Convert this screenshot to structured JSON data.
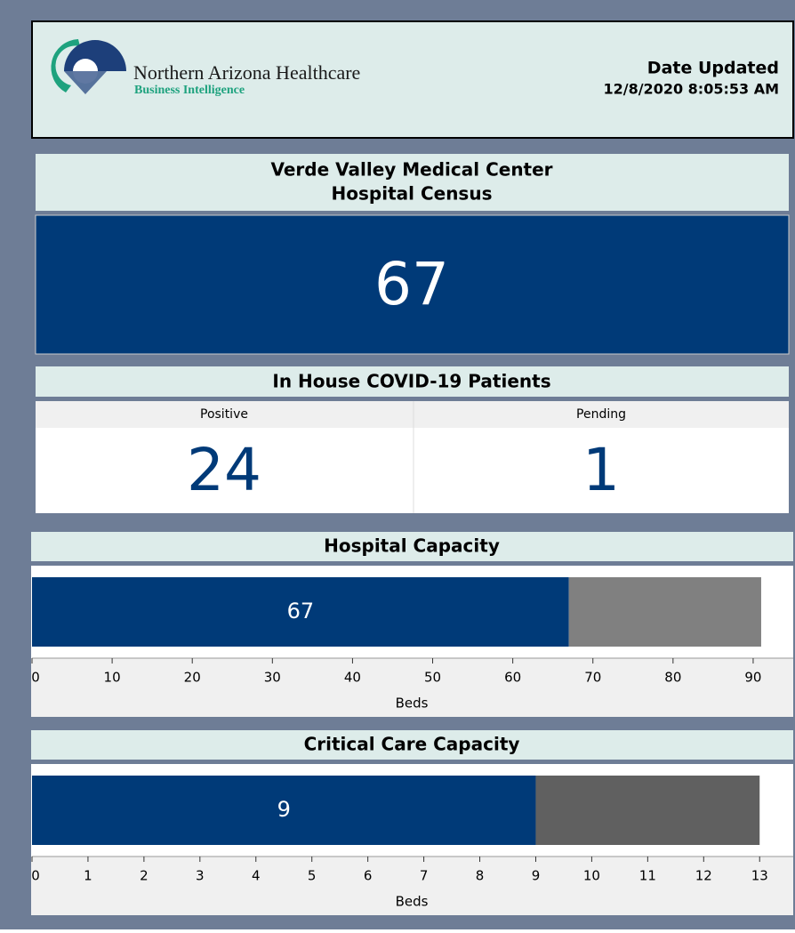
{
  "header": {
    "org": "Northern Arizona Healthcare",
    "unit": "Business Intelligence",
    "date_label": "Date Updated",
    "date": "12/8/2020 8:05:53 AM"
  },
  "census": {
    "title_line1": "Verde Valley Medical Center",
    "title_line2": "Hospital Census",
    "value": 67
  },
  "covid": {
    "title": "In House COVID-19 Patients",
    "columns": [
      "Positive",
      "Pending"
    ],
    "values": [
      24,
      1
    ]
  },
  "chart_data": [
    {
      "type": "bar",
      "orientation": "horizontal",
      "stacked": true,
      "title": "Hospital Capacity",
      "series": [
        {
          "color": "#003a78",
          "values": [
            67
          ]
        },
        {
          "color": "#808080",
          "values": [
            24
          ]
        }
      ],
      "xlim": [
        0,
        95
      ],
      "xticks": [
        0,
        10,
        20,
        30,
        40,
        50,
        60,
        70,
        80,
        90
      ],
      "xlabel": "Beds"
    },
    {
      "type": "bar",
      "orientation": "horizontal",
      "stacked": true,
      "title": "Critical Care Capacity",
      "series": [
        {
          "color": "#003a78",
          "values": [
            9
          ]
        },
        {
          "color": "#606060",
          "values": [
            4
          ]
        }
      ],
      "xlim": [
        0,
        13.6
      ],
      "xticks": [
        0,
        1,
        2,
        3,
        4,
        5,
        6,
        7,
        8,
        9,
        10,
        11,
        12,
        13
      ],
      "xlabel": "Beds"
    }
  ]
}
